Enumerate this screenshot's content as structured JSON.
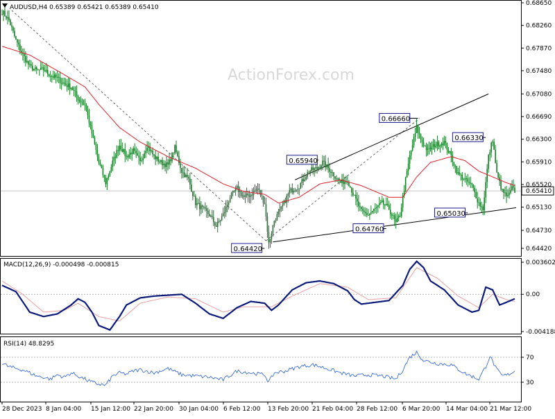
{
  "header": {
    "main": "AUDUSD,H4  0.65389 0.65421 0.65389 0.65410",
    "macd": "MACD(12,26,9) -0.000498 -0.000815",
    "rsi": "RSI(14) 48.8295"
  },
  "watermark": "ActionForex.com",
  "colors": {
    "candle": "#1a7a2a",
    "ma": "#e0202a",
    "macd": "#0b1a7a",
    "signal": "#e8a0a0",
    "rsi": "#1e5adc",
    "trend": "#000000",
    "label_border": "#1a1a8c"
  },
  "chart_data": [
    {
      "type": "candlestick",
      "title": "AUDUSD,H4",
      "ylim": [
        0.6442,
        0.6865
      ],
      "y_ticks": [
        "0.68650",
        "0.68260",
        "0.67870",
        "0.67480",
        "0.67080",
        "0.66690",
        "0.66300",
        "0.65910",
        "0.65520",
        "0.65130",
        "0.64730",
        "0.64420"
      ],
      "current_price": "0.65410",
      "annotations": [
        "0.66660",
        "0.66330",
        "0.65940",
        "0.65030",
        "0.64760",
        "0.64420"
      ],
      "close_anchors": [
        [
          0,
          0.685
        ],
        [
          5,
          0.6835
        ],
        [
          10,
          0.68
        ],
        [
          15,
          0.6775
        ],
        [
          20,
          0.6755
        ],
        [
          25,
          0.6748
        ],
        [
          30,
          0.675
        ],
        [
          35,
          0.674
        ],
        [
          40,
          0.6735
        ],
        [
          45,
          0.6725
        ],
        [
          50,
          0.672
        ],
        [
          55,
          0.67
        ],
        [
          60,
          0.669
        ],
        [
          65,
          0.664
        ],
        [
          70,
          0.659
        ],
        [
          75,
          0.6555
        ],
        [
          80,
          0.659
        ],
        [
          85,
          0.662
        ],
        [
          90,
          0.66
        ],
        [
          95,
          0.661
        ],
        [
          100,
          0.659
        ],
        [
          105,
          0.662
        ],
        [
          110,
          0.66
        ],
        [
          115,
          0.659
        ],
        [
          120,
          0.6585
        ],
        [
          125,
          0.6615
        ],
        [
          130,
          0.6575
        ],
        [
          135,
          0.656
        ],
        [
          140,
          0.652
        ],
        [
          145,
          0.651
        ],
        [
          150,
          0.65
        ],
        [
          155,
          0.648
        ],
        [
          160,
          0.65
        ],
        [
          165,
          0.653
        ],
        [
          170,
          0.6545
        ],
        [
          175,
          0.653
        ],
        [
          180,
          0.6535
        ],
        [
          185,
          0.6545
        ],
        [
          190,
          0.652
        ],
        [
          193,
          0.645
        ],
        [
          197,
          0.649
        ],
        [
          202,
          0.651
        ],
        [
          208,
          0.654
        ],
        [
          215,
          0.655
        ],
        [
          222,
          0.6575
        ],
        [
          228,
          0.658
        ],
        [
          232,
          0.659
        ],
        [
          238,
          0.6575
        ],
        [
          245,
          0.6555
        ],
        [
          250,
          0.656
        ],
        [
          255,
          0.653
        ],
        [
          260,
          0.6505
        ],
        [
          265,
          0.65
        ],
        [
          270,
          0.651
        ],
        [
          275,
          0.652
        ],
        [
          280,
          0.651
        ],
        [
          285,
          0.6485
        ],
        [
          288,
          0.65
        ],
        [
          292,
          0.656
        ],
        [
          295,
          0.66
        ],
        [
          300,
          0.665
        ],
        [
          303,
          0.663
        ],
        [
          308,
          0.661
        ],
        [
          313,
          0.662
        ],
        [
          320,
          0.6625
        ],
        [
          325,
          0.66
        ],
        [
          330,
          0.657
        ],
        [
          335,
          0.656
        ],
        [
          340,
          0.655
        ],
        [
          345,
          0.652
        ],
        [
          348,
          0.651
        ],
        [
          352,
          0.66
        ],
        [
          355,
          0.663
        ],
        [
          358,
          0.657
        ],
        [
          362,
          0.654
        ],
        [
          366,
          0.653
        ],
        [
          369,
          0.6545
        ],
        [
          371,
          0.6541
        ]
      ],
      "ma_anchors": [
        [
          0,
          0.679
        ],
        [
          20,
          0.6775
        ],
        [
          40,
          0.6748
        ],
        [
          60,
          0.672
        ],
        [
          70,
          0.669
        ],
        [
          85,
          0.665
        ],
        [
          100,
          0.6625
        ],
        [
          120,
          0.66
        ],
        [
          140,
          0.658
        ],
        [
          160,
          0.6553
        ],
        [
          175,
          0.654
        ],
        [
          190,
          0.6535
        ],
        [
          200,
          0.652
        ],
        [
          215,
          0.653
        ],
        [
          230,
          0.6553
        ],
        [
          245,
          0.656
        ],
        [
          260,
          0.655
        ],
        [
          280,
          0.653
        ],
        [
          290,
          0.653
        ],
        [
          300,
          0.6565
        ],
        [
          310,
          0.659
        ],
        [
          325,
          0.66
        ],
        [
          335,
          0.6593
        ],
        [
          345,
          0.6575
        ],
        [
          355,
          0.6565
        ],
        [
          365,
          0.6555
        ],
        [
          371,
          0.655
        ]
      ]
    },
    {
      "type": "line",
      "title": "MACD(12,26,9)",
      "ylim": [
        -0.004188,
        0.003602
      ],
      "y_ticks": [
        "0.003602",
        "0.00",
        "-0.004188"
      ],
      "macd_anchors": [
        [
          0,
          0.001
        ],
        [
          10,
          0.0003
        ],
        [
          20,
          -0.002
        ],
        [
          30,
          -0.0025
        ],
        [
          40,
          -0.0022
        ],
        [
          50,
          -0.0012
        ],
        [
          55,
          -0.0005
        ],
        [
          60,
          -0.0009
        ],
        [
          65,
          -0.002
        ],
        [
          70,
          -0.0035
        ],
        [
          78,
          -0.004
        ],
        [
          85,
          -0.0025
        ],
        [
          90,
          -0.0012
        ],
        [
          100,
          -0.0004
        ],
        [
          110,
          -0.0002
        ],
        [
          120,
          -0.0001
        ],
        [
          130,
          0.0
        ],
        [
          140,
          -0.001
        ],
        [
          150,
          -0.0022
        ],
        [
          160,
          -0.0027
        ],
        [
          170,
          -0.0015
        ],
        [
          180,
          -0.0008
        ],
        [
          190,
          -0.001
        ],
        [
          195,
          -0.0018
        ],
        [
          200,
          -0.0012
        ],
        [
          210,
          0.0005
        ],
        [
          220,
          0.0013
        ],
        [
          230,
          0.0015
        ],
        [
          240,
          0.0012
        ],
        [
          250,
          0.0004
        ],
        [
          255,
          -0.0006
        ],
        [
          260,
          -0.0011
        ],
        [
          270,
          -0.0009
        ],
        [
          280,
          -0.0007
        ],
        [
          290,
          0.001
        ],
        [
          295,
          0.0028
        ],
        [
          300,
          0.0037
        ],
        [
          305,
          0.003
        ],
        [
          310,
          0.0015
        ],
        [
          320,
          0.0005
        ],
        [
          330,
          -0.0012
        ],
        [
          340,
          -0.002
        ],
        [
          345,
          -0.0018
        ],
        [
          350,
          0.0008
        ],
        [
          355,
          0.0005
        ],
        [
          360,
          -0.0012
        ],
        [
          365,
          -0.0009
        ],
        [
          371,
          -0.0005
        ]
      ],
      "signal_anchors": [
        [
          0,
          0.0015
        ],
        [
          15,
          0.0
        ],
        [
          30,
          -0.002
        ],
        [
          45,
          -0.0018
        ],
        [
          55,
          -0.001
        ],
        [
          70,
          -0.0025
        ],
        [
          85,
          -0.003
        ],
        [
          100,
          -0.001
        ],
        [
          120,
          -0.0003
        ],
        [
          140,
          -0.0005
        ],
        [
          160,
          -0.002
        ],
        [
          175,
          -0.0014
        ],
        [
          195,
          -0.0014
        ],
        [
          210,
          -0.0002
        ],
        [
          230,
          0.0012
        ],
        [
          250,
          0.0008
        ],
        [
          265,
          -0.0006
        ],
        [
          285,
          -0.0004
        ],
        [
          300,
          0.003
        ],
        [
          315,
          0.0018
        ],
        [
          330,
          -0.0002
        ],
        [
          345,
          -0.0015
        ],
        [
          355,
          0.0
        ],
        [
          365,
          -0.0006
        ],
        [
          371,
          -0.0008
        ]
      ]
    },
    {
      "type": "line",
      "title": "RSI(14)",
      "ylim": [
        0,
        100
      ],
      "y_ticks": [
        "70",
        "30"
      ],
      "rsi_anchors": [
        [
          0,
          60
        ],
        [
          5,
          55
        ],
        [
          10,
          52
        ],
        [
          15,
          50
        ],
        [
          20,
          45
        ],
        [
          25,
          40
        ],
        [
          30,
          38
        ],
        [
          35,
          35
        ],
        [
          40,
          42
        ],
        [
          45,
          38
        ],
        [
          50,
          45
        ],
        [
          55,
          40
        ],
        [
          60,
          35
        ],
        [
          65,
          30
        ],
        [
          70,
          27
        ],
        [
          75,
          25
        ],
        [
          80,
          40
        ],
        [
          85,
          45
        ],
        [
          90,
          43
        ],
        [
          95,
          48
        ],
        [
          100,
          50
        ],
        [
          110,
          45
        ],
        [
          120,
          52
        ],
        [
          130,
          42
        ],
        [
          140,
          40
        ],
        [
          150,
          38
        ],
        [
          160,
          34
        ],
        [
          170,
          48
        ],
        [
          180,
          45
        ],
        [
          190,
          42
        ],
        [
          193,
          30
        ],
        [
          197,
          45
        ],
        [
          205,
          48
        ],
        [
          215,
          55
        ],
        [
          225,
          58
        ],
        [
          235,
          52
        ],
        [
          245,
          45
        ],
        [
          255,
          40
        ],
        [
          265,
          42
        ],
        [
          275,
          40
        ],
        [
          285,
          35
        ],
        [
          290,
          50
        ],
        [
          295,
          70
        ],
        [
          300,
          78
        ],
        [
          305,
          65
        ],
        [
          315,
          60
        ],
        [
          325,
          58
        ],
        [
          335,
          44
        ],
        [
          345,
          35
        ],
        [
          350,
          55
        ],
        [
          353,
          72
        ],
        [
          358,
          50
        ],
        [
          362,
          40
        ],
        [
          366,
          42
        ],
        [
          371,
          48
        ]
      ]
    }
  ],
  "x_labels": [
    "28 Dec 2023",
    "8 Jan 04:00",
    "15 Jan 12:00",
    "22 Jan 20:00",
    "30 Jan 04:00",
    "6 Feb 12:00",
    "13 Feb 20:00",
    "21 Feb 04:00",
    "28 Feb 12:00",
    "6 Mar 20:00",
    "14 Mar 04:00",
    "21 Mar 12:00"
  ]
}
